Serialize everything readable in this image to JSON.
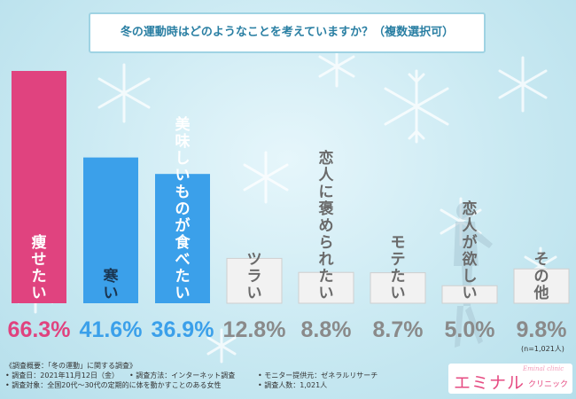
{
  "chart_data": {
    "type": "bar",
    "title": "冬の運動時はどのようなことを考えていますか？（複数選択可）",
    "categories": [
      "痩せたい",
      "寒い",
      "美味しいものが食べたい",
      "ツラい",
      "恋人に褒められたい",
      "モテたい",
      "恋人が欲しい",
      "その他"
    ],
    "values": [
      66.3,
      41.6,
      36.9,
      12.8,
      8.8,
      8.7,
      5.0,
      9.8
    ],
    "value_labels": [
      "66.3%",
      "41.6%",
      "36.9%",
      "12.8%",
      "8.8%",
      "8.7%",
      "5.0%",
      "9.8%"
    ],
    "colors": [
      "#e0437f",
      "#3ba0ea",
      "#3ba0ea",
      "#f2f2f2",
      "#f2f2f2",
      "#f2f2f2",
      "#f2f2f2",
      "#f2f2f2"
    ],
    "label_colors": [
      "#ffffff",
      "#1a3550",
      "#ffffff",
      "#6a6a6a",
      "#6a6a6a",
      "#6a6a6a",
      "#6a6a6a",
      "#6a6a6a"
    ],
    "value_colors": [
      "#e0437f",
      "#3ba0ea",
      "#3ba0ea",
      "#8a8a8a",
      "#8a8a8a",
      "#8a8a8a",
      "#8a8a8a",
      "#8a8a8a"
    ],
    "ylim": [
      0,
      66.3
    ],
    "grid": false,
    "xlabel": "",
    "ylabel": ""
  },
  "sample_note": "(n=1,021人)",
  "footer": {
    "heading": "《調査概要：「冬の運動」に関する調査》",
    "date": "• 調査日：2021年11月12日（金）",
    "method": "• 調査方法：インターネット調査",
    "provider": "• モニター提供元：ゼネラルリサーチ",
    "target": "• 調査対象：全国20代〜30代の定期的に体を動かすことのある女性",
    "count": "• 調査人数：1,021人"
  },
  "brand": {
    "name": "エミナル",
    "sub": "クリニック",
    "script": "Eminal clinic"
  }
}
